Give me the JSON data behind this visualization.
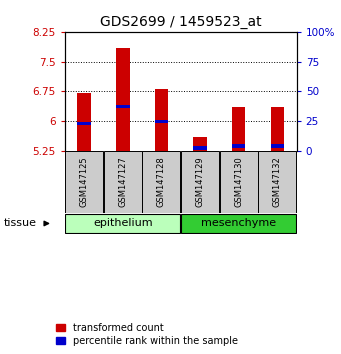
{
  "title": "GDS2699 / 1459523_at",
  "samples": [
    "GSM147125",
    "GSM147127",
    "GSM147128",
    "GSM147129",
    "GSM147130",
    "GSM147132"
  ],
  "red_top": [
    6.7,
    7.85,
    6.8,
    5.6,
    6.35,
    6.35
  ],
  "blue_bottom": [
    5.89,
    6.33,
    5.95,
    5.27,
    5.33,
    5.33
  ],
  "blue_top": [
    5.97,
    6.41,
    6.02,
    5.36,
    5.42,
    5.42
  ],
  "ymin": 5.25,
  "ymax": 8.25,
  "yticks_left": [
    5.25,
    6.0,
    6.75,
    7.5,
    8.25
  ],
  "ytick_labels_left": [
    "5.25",
    "6",
    "6.75",
    "7.5",
    "8.25"
  ],
  "yticks_right_vals": [
    0,
    25,
    50,
    75,
    100
  ],
  "ytick_labels_right": [
    "0",
    "25",
    "50",
    "75",
    "100%"
  ],
  "bar_width": 0.35,
  "red_color": "#cc0000",
  "blue_color": "#0000cc",
  "epithelium_color": "#bbffbb",
  "mesenchyme_color": "#33cc33",
  "epithelium_label": "epithelium",
  "mesenchyme_label": "mesenchyme",
  "tissue_label": "tissue",
  "legend_label_red": "transformed count",
  "legend_label_blue": "percentile rank within the sample",
  "grid_yticks": [
    6.0,
    6.75,
    7.5
  ],
  "sample_box_color": "#cccccc",
  "title_fontsize": 10,
  "tick_fontsize": 7.5,
  "legend_fontsize": 7,
  "sample_fontsize": 6,
  "axis_label_fontsize": 7.5
}
